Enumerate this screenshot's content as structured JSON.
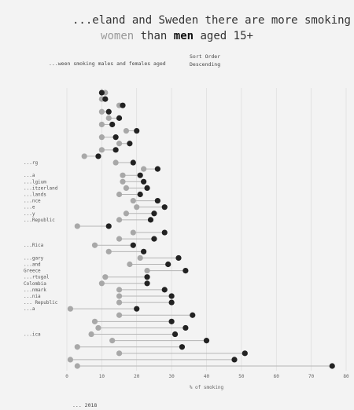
{
  "title": {
    "line1": "...eland and Sweden there are more smoking",
    "line2_a": "women",
    "line2_b": " than ",
    "line2_c": "men",
    "line2_d": " aged 15+"
  },
  "subtitle": "...ween smoking males and females aged",
  "sort": {
    "label": "Sort Order",
    "value": "Descending"
  },
  "footer": "... 2018",
  "colors": {
    "female": "#a8a8a8",
    "male": "#222222",
    "line": "#b5b5b5",
    "grid": "#d9d9d9"
  },
  "chart_data": {
    "type": "dot-range",
    "xlabel": "% of smoking",
    "xlim": [
      0,
      80
    ],
    "xticks": [
      0,
      10,
      20,
      30,
      40,
      50,
      60,
      70,
      80
    ],
    "grid": true,
    "rows": [
      {
        "label": "",
        "female": 11,
        "male": 10
      },
      {
        "label": "",
        "female": 10,
        "male": 11
      },
      {
        "label": "",
        "female": 15,
        "male": 16
      },
      {
        "label": "",
        "female": 10,
        "male": 12
      },
      {
        "label": "",
        "female": 12,
        "male": 15
      },
      {
        "label": "",
        "female": 10,
        "male": 13
      },
      {
        "label": "",
        "female": 17,
        "male": 20
      },
      {
        "label": "",
        "female": 10,
        "male": 14
      },
      {
        "label": "",
        "female": 15,
        "male": 18
      },
      {
        "label": "",
        "female": 10,
        "male": 14
      },
      {
        "label": "",
        "female": 5,
        "male": 9
      },
      {
        "label": "...rg",
        "female": 14,
        "male": 19
      },
      {
        "label": "",
        "female": 22,
        "male": 26
      },
      {
        "label": "...a",
        "female": 16,
        "male": 21
      },
      {
        "label": "...lgium",
        "female": 16,
        "male": 22
      },
      {
        "label": "...itzerland",
        "female": 17,
        "male": 23
      },
      {
        "label": "...lands",
        "female": 15,
        "male": 21
      },
      {
        "label": "...nce",
        "female": 19,
        "male": 26
      },
      {
        "label": "...e",
        "female": 20,
        "male": 28
      },
      {
        "label": "...y",
        "female": 17,
        "male": 25
      },
      {
        "label": "...Republic",
        "female": 15,
        "male": 24
      },
      {
        "label": "",
        "female": 3,
        "male": 12
      },
      {
        "label": "",
        "female": 19,
        "male": 28
      },
      {
        "label": "",
        "female": 15,
        "male": 25
      },
      {
        "label": "...Rica",
        "female": 8,
        "male": 19
      },
      {
        "label": "",
        "female": 12,
        "male": 22
      },
      {
        "label": "...gary",
        "female": 21,
        "male": 32
      },
      {
        "label": "...and",
        "female": 18,
        "male": 29
      },
      {
        "label": "Greece",
        "female": 23,
        "male": 34
      },
      {
        "label": "...rtugal",
        "female": 11,
        "male": 23
      },
      {
        "label": "Colombia",
        "female": 10,
        "male": 23
      },
      {
        "label": "...nmark",
        "female": 15,
        "male": 28
      },
      {
        "label": "...nia",
        "female": 15,
        "male": 30
      },
      {
        "label": "... Republic",
        "female": 15,
        "male": 30
      },
      {
        "label": "...a",
        "female": 1,
        "male": 20
      },
      {
        "label": "",
        "female": 15,
        "male": 36
      },
      {
        "label": "",
        "female": 8,
        "male": 30
      },
      {
        "label": "",
        "female": 9,
        "male": 34
      },
      {
        "label": "...ica",
        "female": 7,
        "male": 31
      },
      {
        "label": "",
        "female": 13,
        "male": 40
      },
      {
        "label": "",
        "female": 3,
        "male": 33
      },
      {
        "label": "",
        "female": 15,
        "male": 51
      },
      {
        "label": "",
        "female": 1,
        "male": 48
      },
      {
        "label": "",
        "female": 3,
        "male": 76
      }
    ]
  }
}
